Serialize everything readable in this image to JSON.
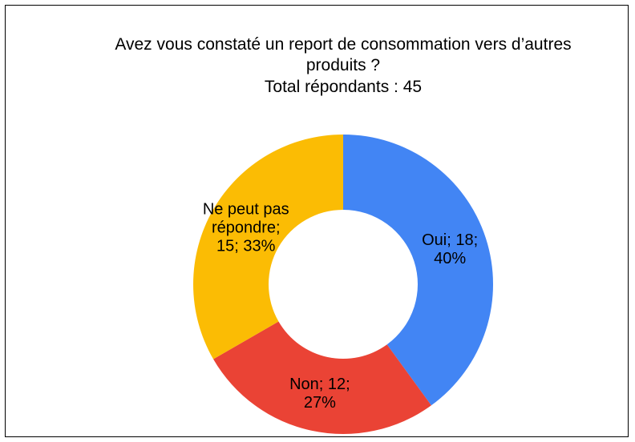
{
  "chart_data": {
    "type": "donut",
    "title": "Avez vous constaté un report de consommation vers d’autres produits ?",
    "subtitle": "Total répondants : 45",
    "categories": [
      "Oui",
      "Non",
      "Ne peut pas répondre"
    ],
    "values": [
      18,
      12,
      15
    ],
    "value_labels": [
      "Oui; 18; 40%",
      "Non; 12; 27%",
      "Ne peut pas répondre; 15; 33%"
    ],
    "colors": [
      "#4285f4",
      "#ea4335",
      "#fbbc04"
    ]
  }
}
